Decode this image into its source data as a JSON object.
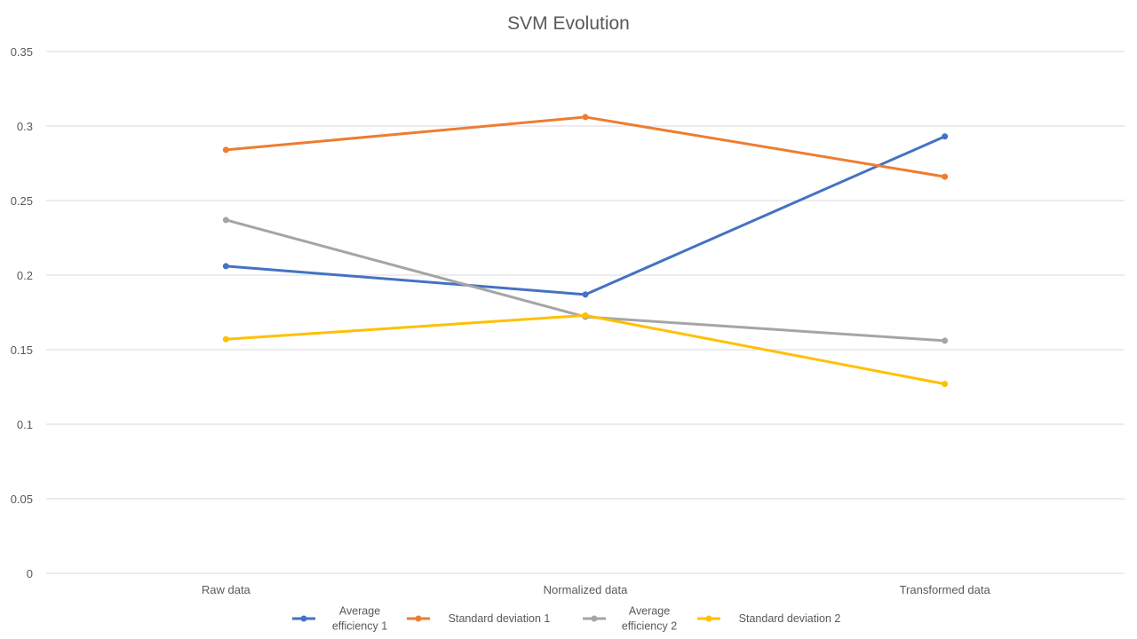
{
  "chart_data": {
    "type": "line",
    "title": "SVM Evolution",
    "xlabel": "",
    "ylabel": "",
    "categories": [
      "Raw data",
      "Normalized data",
      "Transformed data"
    ],
    "ylim": [
      0,
      0.35
    ],
    "yticks": [
      "0",
      "0.05",
      "0.1",
      "0.15",
      "0.2",
      "0.25",
      "0.3",
      "0.35"
    ],
    "grid": true,
    "legend_position": "bottom",
    "series": [
      {
        "name": "Average efficiency 1",
        "legend_lines": [
          "Average",
          "efficiency 1"
        ],
        "color": "#4472c4",
        "values": [
          0.206,
          0.187,
          0.293
        ]
      },
      {
        "name": "Standard deviation 1",
        "legend_lines": [
          "Standard deviation 1"
        ],
        "color": "#ed7d31",
        "values": [
          0.284,
          0.306,
          0.266
        ]
      },
      {
        "name": "Average efficiency 2",
        "legend_lines": [
          "Average",
          "efficiency 2"
        ],
        "color": "#a5a5a5",
        "values": [
          0.237,
          0.172,
          0.156
        ]
      },
      {
        "name": "Standard deviation 2",
        "legend_lines": [
          "Standard deviation 2"
        ],
        "color": "#ffc000",
        "values": [
          0.157,
          0.173,
          0.127
        ]
      }
    ]
  }
}
